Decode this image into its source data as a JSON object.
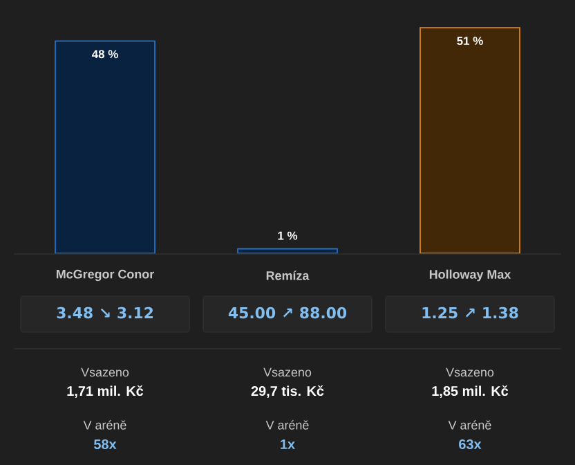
{
  "chart_data": {
    "type": "bar",
    "categories": [
      "McGregor Conor",
      "Remíza",
      "Holloway Max"
    ],
    "values": [
      48,
      1,
      51
    ],
    "value_labels": [
      "48 %",
      "1 %",
      "51 %"
    ],
    "colors": [
      "#1e7be0",
      "#1e7be0",
      "#f0901a"
    ],
    "annotations": [
      "3.48 ↘ 3.12",
      "45.00 ↗ 88.00",
      "1.25 ↗ 1.38",
      "Vsazeno",
      "Vsazeno",
      "Vsazeno",
      "1,71 mil. Kč",
      "29,7 tis. Kč",
      "1,85 mil. Kč",
      "V aréně",
      "V aréně",
      "V aréně",
      "58x",
      "1x",
      "63x"
    ]
  }
}
